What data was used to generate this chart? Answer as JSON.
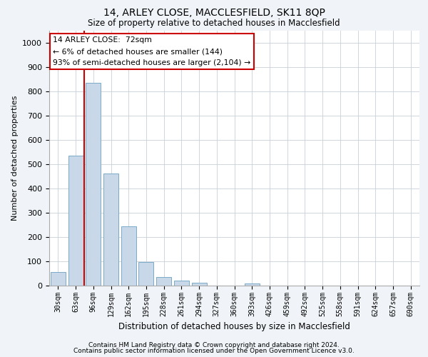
{
  "title1": "14, ARLEY CLOSE, MACCLESFIELD, SK11 8QP",
  "title2": "Size of property relative to detached houses in Macclesfield",
  "xlabel": "Distribution of detached houses by size in Macclesfield",
  "ylabel": "Number of detached properties",
  "categories": [
    "30sqm",
    "63sqm",
    "96sqm",
    "129sqm",
    "162sqm",
    "195sqm",
    "228sqm",
    "261sqm",
    "294sqm",
    "327sqm",
    "360sqm",
    "393sqm",
    "426sqm",
    "459sqm",
    "492sqm",
    "525sqm",
    "558sqm",
    "591sqm",
    "624sqm",
    "657sqm",
    "690sqm"
  ],
  "values": [
    55,
    535,
    835,
    460,
    245,
    98,
    35,
    22,
    12,
    0,
    0,
    8,
    0,
    0,
    0,
    0,
    0,
    0,
    0,
    0,
    0
  ],
  "bar_color": "#c8d8e8",
  "bar_edge_color": "#7aaac8",
  "vline_x": 1.5,
  "vline_color": "#cc0000",
  "annotation_text": "14 ARLEY CLOSE:  72sqm\n← 6% of detached houses are smaller (144)\n93% of semi-detached houses are larger (2,104) →",
  "annotation_box_color": "#ffffff",
  "annotation_box_edge_color": "#cc0000",
  "ylim": [
    0,
    1050
  ],
  "yticks": [
    0,
    100,
    200,
    300,
    400,
    500,
    600,
    700,
    800,
    900,
    1000
  ],
  "footnote1": "Contains HM Land Registry data © Crown copyright and database right 2024.",
  "footnote2": "Contains public sector information licensed under the Open Government Licence v3.0.",
  "bg_color": "#f0f4f8",
  "plot_bg_color": "#ffffff",
  "grid_color": "#c8d0d8"
}
